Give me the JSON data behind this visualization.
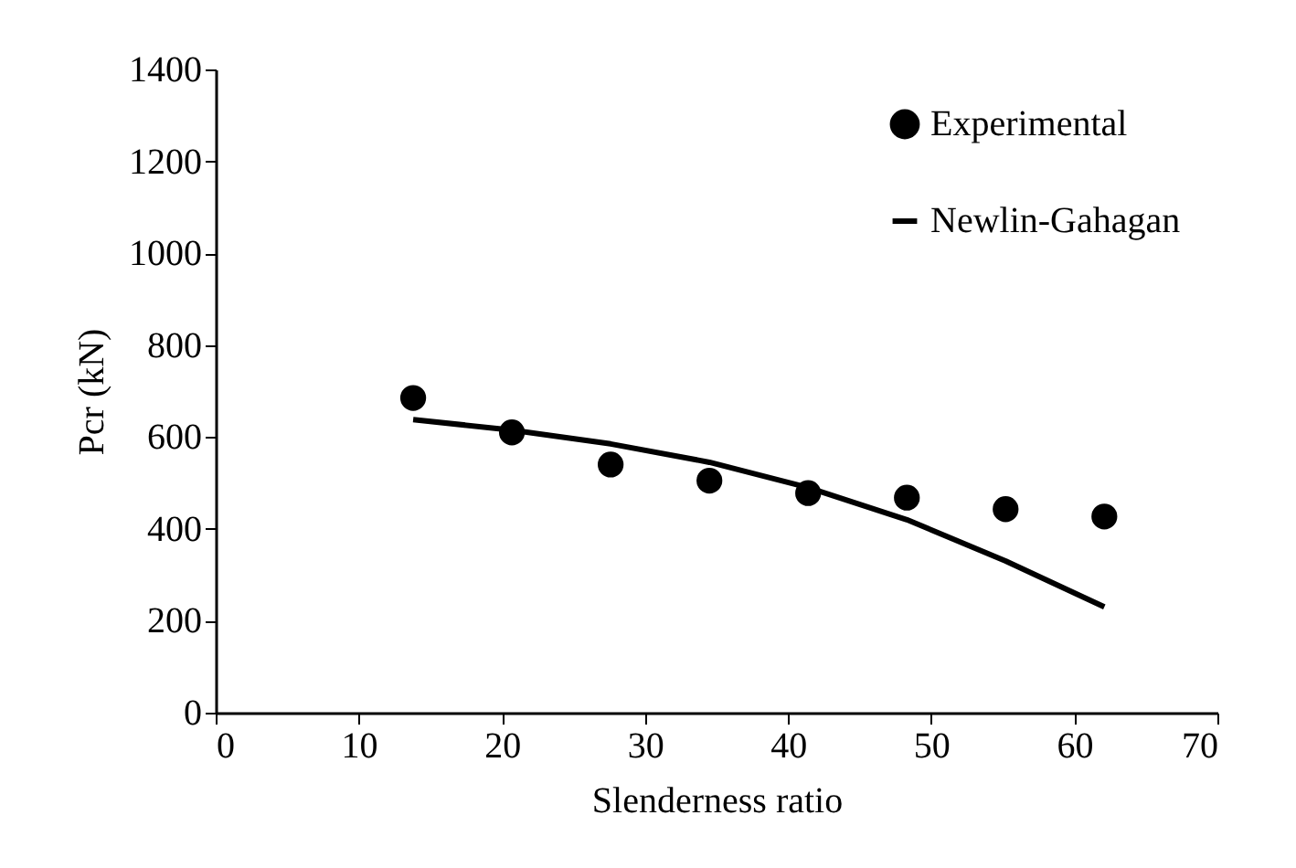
{
  "chart_data": {
    "type": "scatter",
    "xlabel": "Slenderness ratio",
    "ylabel": "Pcr (kN)",
    "xlim": [
      0,
      70
    ],
    "xticks": [
      0,
      10,
      20,
      30,
      40,
      50,
      60,
      70
    ],
    "ylim": [
      0,
      1400
    ],
    "yticks": [
      0,
      200,
      400,
      600,
      800,
      1000,
      1200,
      1400
    ],
    "grid": false,
    "legend": "top right",
    "series": [
      {
        "name": "Experimental",
        "marker": "circle",
        "color": "#000000",
        "x": [
          13.8,
          20.7,
          27.6,
          34.5,
          41.4,
          48.3,
          55.2,
          62.1
        ],
        "values": [
          685,
          610,
          540,
          505,
          478,
          468,
          443,
          427
        ]
      },
      {
        "name": "Newlin-Gahagan",
        "type": "line",
        "line_style": "solid",
        "color": "#000000",
        "x": [
          13.8,
          20.7,
          27.6,
          34.5,
          41.4,
          48.3,
          55.2,
          62.1
        ],
        "values": [
          638,
          615,
          585,
          545,
          490,
          420,
          330,
          230
        ]
      }
    ]
  }
}
